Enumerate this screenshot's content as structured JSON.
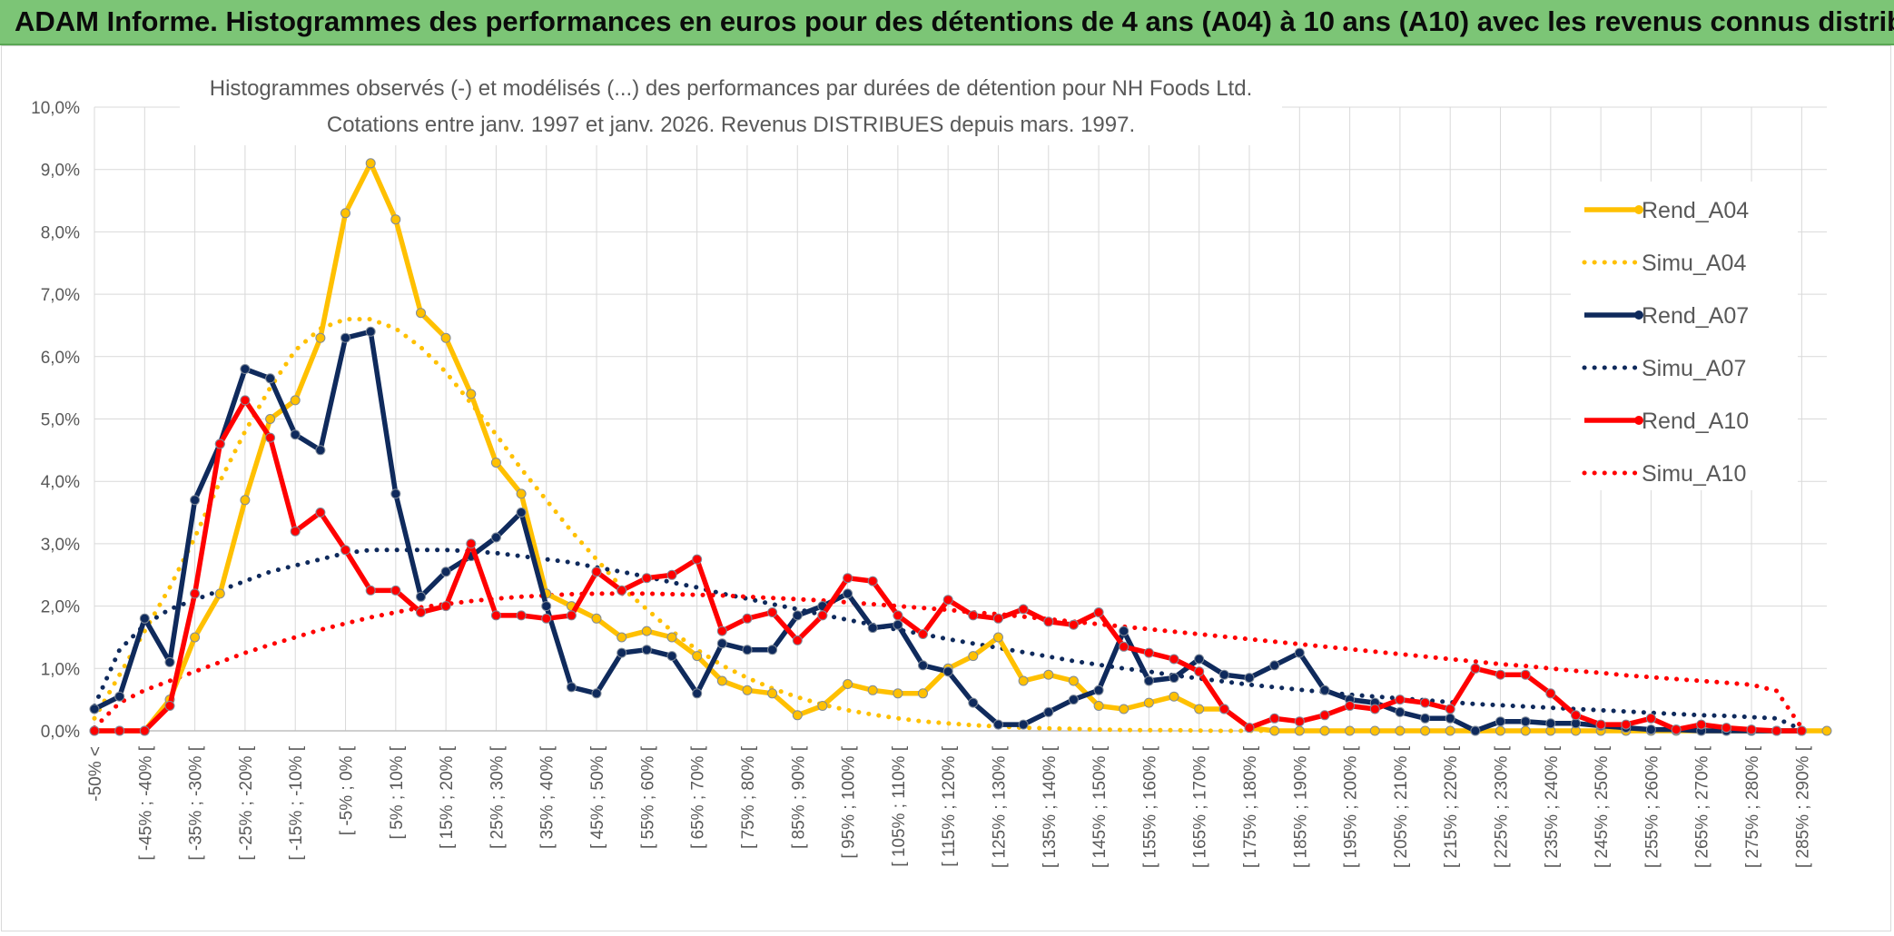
{
  "banner": {
    "title": "ADAM Informe. Histogrammes des performances en euros pour des détentions de 4 ans (A04) à 10 ans (A10) avec les revenus connus distribués"
  },
  "chart_data": {
    "type": "line",
    "title": "Histogrammes observés (-) et modélisés (...) des performances par durées de détention pour NH Foods Ltd.",
    "subtitle": "Cotations entre janv. 1997 et janv. 2026. Revenus DISTRIBUES depuis mars. 1997.",
    "ylim": [
      0,
      10
    ],
    "y_ticks": [
      "0,0%",
      "1,0%",
      "2,0%",
      "3,0%",
      "4,0%",
      "5,0%",
      "6,0%",
      "7,0%",
      "8,0%",
      "9,0%",
      "10,0%"
    ],
    "grid": true,
    "legend_position": "right",
    "x_tick_labels": [
      "-50% <",
      "[ -45% ; -40% [",
      "[ -35% ; -30% [",
      "[ -25% ; -20% [",
      "[ -15% ; -10% [",
      "[ -5% ; 0% [",
      "[ 5% ; 10% [",
      "[ 15% ; 20% [",
      "[ 25% ; 30% [",
      "[ 35% ; 40% [",
      "[ 45% ; 50% [",
      "[ 55% ; 60% [",
      "[ 65% ; 70% [",
      "[ 75% ; 80% [",
      "[ 85% ; 90% [",
      "[ 95% ; 100% [",
      "[ 105% ; 110% [",
      "[ 115% ; 120% [",
      "[ 125% ; 130% [",
      "[ 135% ; 140% [",
      "[ 145% ; 150% [",
      "[ 155% ; 160% [",
      "[ 165% ; 170% [",
      "[ 175% ; 180% [",
      "[ 185% ; 190% [",
      "[ 195% ; 200% [",
      "[ 205% ; 210% [",
      "[ 215% ; 220% [",
      "[ 225% ; 230% [",
      "[ 235% ; 240% [",
      "[ 245% ; 250% [",
      "[ 255% ; 260% [",
      "[ 265% ; 270% [",
      "[ 275% ; 280% [",
      "[ 285% ; 290% ["
    ],
    "x_tick_every": 2,
    "series": [
      {
        "name": "Rend_A04",
        "style": "solid",
        "color": "#ffc000",
        "values": [
          0,
          0,
          0,
          0.5,
          1.5,
          2.2,
          3.7,
          5.0,
          5.3,
          6.3,
          8.3,
          9.1,
          8.2,
          6.7,
          6.3,
          5.4,
          4.3,
          3.8,
          2.2,
          2.0,
          1.8,
          1.5,
          1.6,
          1.5,
          1.2,
          0.8,
          0.65,
          0.6,
          0.25,
          0.4,
          0.75,
          0.65,
          0.6,
          0.6,
          1.0,
          1.2,
          1.5,
          0.8,
          0.9,
          0.8,
          0.4,
          0.35,
          0.45,
          0.55,
          0.35,
          0.35,
          0.05,
          0,
          0,
          0,
          0,
          0,
          0,
          0,
          0,
          0,
          0,
          0,
          0,
          0,
          0,
          0,
          0,
          0,
          0,
          0,
          0,
          0,
          0,
          0
        ]
      },
      {
        "name": "Simu_A04",
        "style": "dotted",
        "color": "#ffc000",
        "values": [
          0.2,
          0.9,
          1.6,
          2.3,
          3.1,
          4.0,
          4.8,
          5.5,
          6.1,
          6.45,
          6.6,
          6.6,
          6.45,
          6.15,
          5.75,
          5.25,
          4.75,
          4.2,
          3.7,
          3.2,
          2.75,
          2.3,
          1.95,
          1.6,
          1.3,
          1.05,
          0.85,
          0.68,
          0.54,
          0.42,
          0.33,
          0.26,
          0.2,
          0.15,
          0.12,
          0.09,
          0.07,
          0.05,
          0.04,
          0.03,
          0.02,
          0.015,
          0.01,
          0.01,
          0.005,
          0,
          0,
          0,
          0,
          0,
          0,
          0,
          0,
          0,
          0,
          0,
          0,
          0,
          0,
          0,
          0,
          0,
          0,
          0,
          0,
          0,
          0,
          0,
          0,
          0
        ]
      },
      {
        "name": "Rend_A07",
        "style": "solid",
        "color": "#0f2a5c",
        "values": [
          0.35,
          0.55,
          1.8,
          1.1,
          3.7,
          4.6,
          5.8,
          5.65,
          4.75,
          4.5,
          6.3,
          6.4,
          3.8,
          2.15,
          2.55,
          2.8,
          3.1,
          3.5,
          2.0,
          0.7,
          0.6,
          1.25,
          1.3,
          1.2,
          0.6,
          1.4,
          1.3,
          1.3,
          1.85,
          2.0,
          2.2,
          1.65,
          1.7,
          1.05,
          0.95,
          0.45,
          0.1,
          0.1,
          0.3,
          0.5,
          0.65,
          1.6,
          0.8,
          0.85,
          1.15,
          0.9,
          0.85,
          1.05,
          1.25,
          0.65,
          0.5,
          0.45,
          0.3,
          0.2,
          0.2,
          0,
          0.15,
          0.15,
          0.12,
          0.12,
          0.08,
          0.05,
          0.02,
          0.02,
          0,
          0,
          0,
          0,
          0
        ]
      },
      {
        "name": "Simu_A07",
        "style": "dotted",
        "color": "#0f2a5c",
        "values": [
          0.4,
          1.3,
          1.7,
          1.95,
          2.1,
          2.25,
          2.4,
          2.55,
          2.65,
          2.75,
          2.85,
          2.9,
          2.9,
          2.9,
          2.9,
          2.88,
          2.85,
          2.8,
          2.75,
          2.7,
          2.62,
          2.55,
          2.47,
          2.38,
          2.3,
          2.2,
          2.12,
          2.03,
          1.95,
          1.86,
          1.78,
          1.7,
          1.62,
          1.55,
          1.47,
          1.4,
          1.33,
          1.26,
          1.19,
          1.12,
          1.06,
          1.0,
          0.95,
          0.89,
          0.84,
          0.79,
          0.74,
          0.7,
          0.66,
          0.62,
          0.58,
          0.55,
          0.52,
          0.49,
          0.46,
          0.43,
          0.41,
          0.39,
          0.37,
          0.35,
          0.33,
          0.31,
          0.29,
          0.27,
          0.25,
          0.24,
          0.22,
          0.2,
          0.02
        ]
      },
      {
        "name": "Rend_A10",
        "style": "solid",
        "color": "#ff0000",
        "values": [
          0,
          0,
          0,
          0.4,
          2.2,
          4.6,
          5.3,
          4.7,
          3.2,
          3.5,
          2.9,
          2.25,
          2.25,
          1.9,
          2.0,
          3.0,
          1.85,
          1.85,
          1.8,
          1.85,
          2.55,
          2.25,
          2.45,
          2.5,
          2.75,
          1.6,
          1.8,
          1.9,
          1.45,
          1.85,
          2.45,
          2.4,
          1.85,
          1.55,
          2.1,
          1.85,
          1.8,
          1.95,
          1.75,
          1.7,
          1.9,
          1.35,
          1.25,
          1.15,
          0.95,
          0.35,
          0.05,
          0.2,
          0.15,
          0.25,
          0.4,
          0.35,
          0.5,
          0.45,
          0.35,
          1.0,
          0.9,
          0.9,
          0.6,
          0.25,
          0.1,
          0.1,
          0.2,
          0.02,
          0.1,
          0.05,
          0.02,
          0,
          0
        ]
      },
      {
        "name": "Simu_A10",
        "style": "dotted",
        "color": "#ff0000",
        "values": [
          0.05,
          0.45,
          0.65,
          0.8,
          0.95,
          1.1,
          1.25,
          1.38,
          1.5,
          1.62,
          1.72,
          1.82,
          1.9,
          1.98,
          2.03,
          2.08,
          2.12,
          2.15,
          2.17,
          2.19,
          2.2,
          2.2,
          2.2,
          2.19,
          2.18,
          2.17,
          2.15,
          2.13,
          2.11,
          2.09,
          2.06,
          2.03,
          2.0,
          1.97,
          1.94,
          1.9,
          1.87,
          1.83,
          1.79,
          1.75,
          1.71,
          1.67,
          1.63,
          1.59,
          1.55,
          1.51,
          1.47,
          1.43,
          1.39,
          1.35,
          1.31,
          1.27,
          1.23,
          1.19,
          1.15,
          1.11,
          1.07,
          1.04,
          1.0,
          0.96,
          0.93,
          0.89,
          0.86,
          0.83,
          0.8,
          0.77,
          0.74,
          0.64,
          0.05
        ]
      }
    ]
  }
}
